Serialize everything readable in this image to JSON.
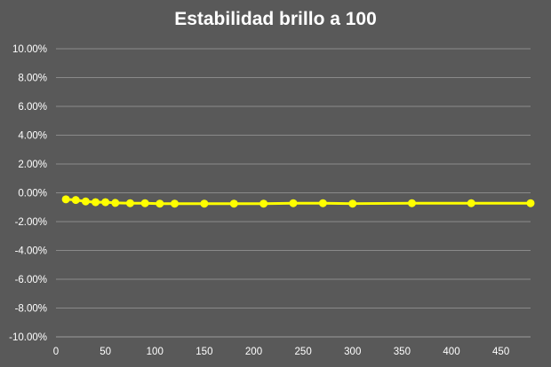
{
  "chart_data": {
    "type": "line",
    "title": "Estabilidad brillo a 100",
    "xlabel": "",
    "ylabel": "",
    "xlim": [
      0,
      480
    ],
    "ylim": [
      -10,
      10
    ],
    "x_ticks": [
      0,
      50,
      100,
      150,
      200,
      250,
      300,
      350,
      400,
      450
    ],
    "y_ticks": [
      10,
      8,
      6,
      4,
      2,
      0,
      -2,
      -4,
      -6,
      -8,
      -10
    ],
    "y_tick_labels": [
      "10.00%",
      "8.00%",
      "6.00%",
      "4.00%",
      "2.00%",
      "0.00%",
      "-2.00%",
      "-4.00%",
      "-6.00%",
      "-8.00%",
      "-10.00%"
    ],
    "grid": true,
    "legend": "none",
    "series": [
      {
        "color": "#FFFF00",
        "x": [
          10,
          20,
          30,
          40,
          50,
          60,
          75,
          90,
          105,
          120,
          150,
          180,
          210,
          240,
          270,
          300,
          360,
          420,
          480
        ],
        "y": [
          -0.45,
          -0.5,
          -0.6,
          -0.65,
          -0.65,
          -0.7,
          -0.72,
          -0.72,
          -0.75,
          -0.75,
          -0.75,
          -0.75,
          -0.75,
          -0.72,
          -0.72,
          -0.75,
          -0.72,
          -0.72,
          -0.72
        ]
      }
    ]
  }
}
